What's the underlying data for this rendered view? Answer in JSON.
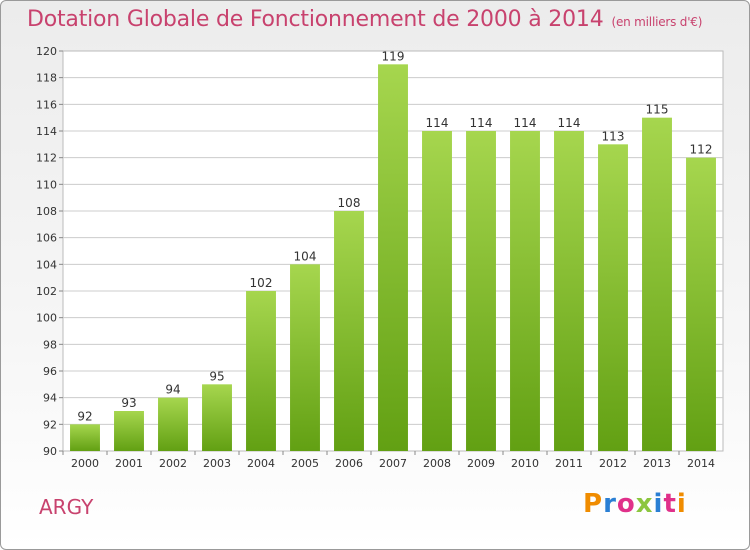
{
  "header": {
    "title": "Dotation Globale de Fonctionnement de 2000 à 2014",
    "subtitle": "(en milliers d'€)"
  },
  "footer": {
    "commune": "ARGY",
    "brand": "Proxiti",
    "brand_colors": [
      "#f08c00",
      "#2a7fd4",
      "#e0308a",
      "#8cc63f",
      "#2a7fd4",
      "#e0308a",
      "#f08c00"
    ]
  },
  "colors": {
    "bar_light": "#a6d64e",
    "bar_dark": "#62a013",
    "title": "#c8426e",
    "grid": "#cccccc"
  },
  "chart_data": {
    "type": "bar",
    "categories": [
      "2000",
      "2001",
      "2002",
      "2003",
      "2004",
      "2005",
      "2006",
      "2007",
      "2008",
      "2009",
      "2010",
      "2011",
      "2012",
      "2013",
      "2014"
    ],
    "values": [
      92,
      93,
      94,
      95,
      102,
      104,
      108,
      119,
      114,
      114,
      114,
      114,
      113,
      115,
      112
    ],
    "ylim": [
      90,
      120
    ],
    "ytick_step": 2,
    "grid": true,
    "show_value_labels": true
  }
}
